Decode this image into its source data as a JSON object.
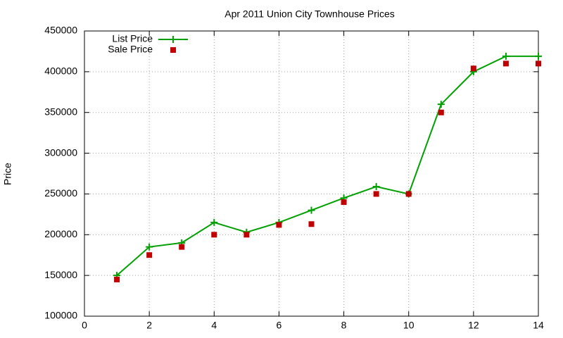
{
  "chart_data": {
    "type": "line",
    "title": "Apr 2011 Union City Townhouse Prices",
    "y_label": "Price",
    "x": [
      1,
      2,
      3,
      4,
      5,
      6,
      7,
      8,
      9,
      10,
      11,
      12,
      13,
      14
    ],
    "series": [
      {
        "name": "List Price",
        "color": "#00a000",
        "mode": "lines+markers",
        "values": [
          150000,
          185000,
          190000,
          215000,
          203000,
          215000,
          230000,
          245000,
          259000,
          250000,
          360000,
          400000,
          419000,
          419000
        ]
      },
      {
        "name": "Sale Price",
        "color": "#c00000",
        "mode": "markers",
        "values": [
          145000,
          175000,
          185000,
          200000,
          200000,
          212000,
          213000,
          240000,
          250000,
          250000,
          350000,
          404000,
          410000,
          410000
        ]
      }
    ],
    "xlim": [
      0,
      14
    ],
    "xticks": [
      0,
      2,
      4,
      6,
      8,
      10,
      12,
      14
    ],
    "ylim": [
      100000,
      450000
    ],
    "yticks": [
      100000,
      150000,
      200000,
      250000,
      300000,
      350000,
      400000,
      450000
    ],
    "grid": true,
    "legend": "top-left"
  }
}
